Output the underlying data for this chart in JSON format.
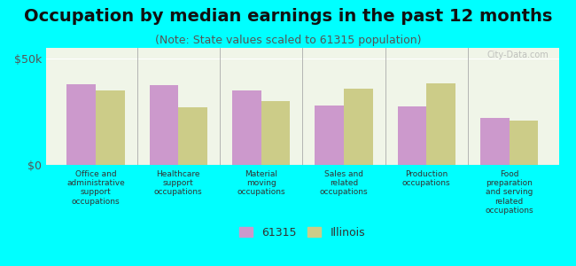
{
  "title": "Occupation by median earnings in the past 12 months",
  "subtitle": "(Note: State values scaled to 61315 population)",
  "categories": [
    "Office and\nadministrative\nsupport\noccupations",
    "Healthcare\nsupport\noccupations",
    "Material\nmoving\noccupations",
    "Sales and\nrelated\noccupations",
    "Production\noccupations",
    "Food\npreparation\nand serving\nrelated\noccupations"
  ],
  "values_61315": [
    38000,
    37500,
    35000,
    28000,
    27500,
    22000
  ],
  "values_illinois": [
    35000,
    27000,
    30000,
    36000,
    38500,
    21000
  ],
  "ylim": [
    0,
    55000
  ],
  "yticks": [
    0,
    50000
  ],
  "ytick_labels": [
    "$0",
    "$50k"
  ],
  "color_61315": "#cc99cc",
  "color_illinois": "#cccc88",
  "bg_color": "#00ffff",
  "plot_bg": "#f0f5e8",
  "bar_width": 0.35,
  "legend_labels": [
    "61315",
    "Illinois"
  ],
  "watermark": "City-Data.com",
  "title_fontsize": 14,
  "subtitle_fontsize": 9
}
